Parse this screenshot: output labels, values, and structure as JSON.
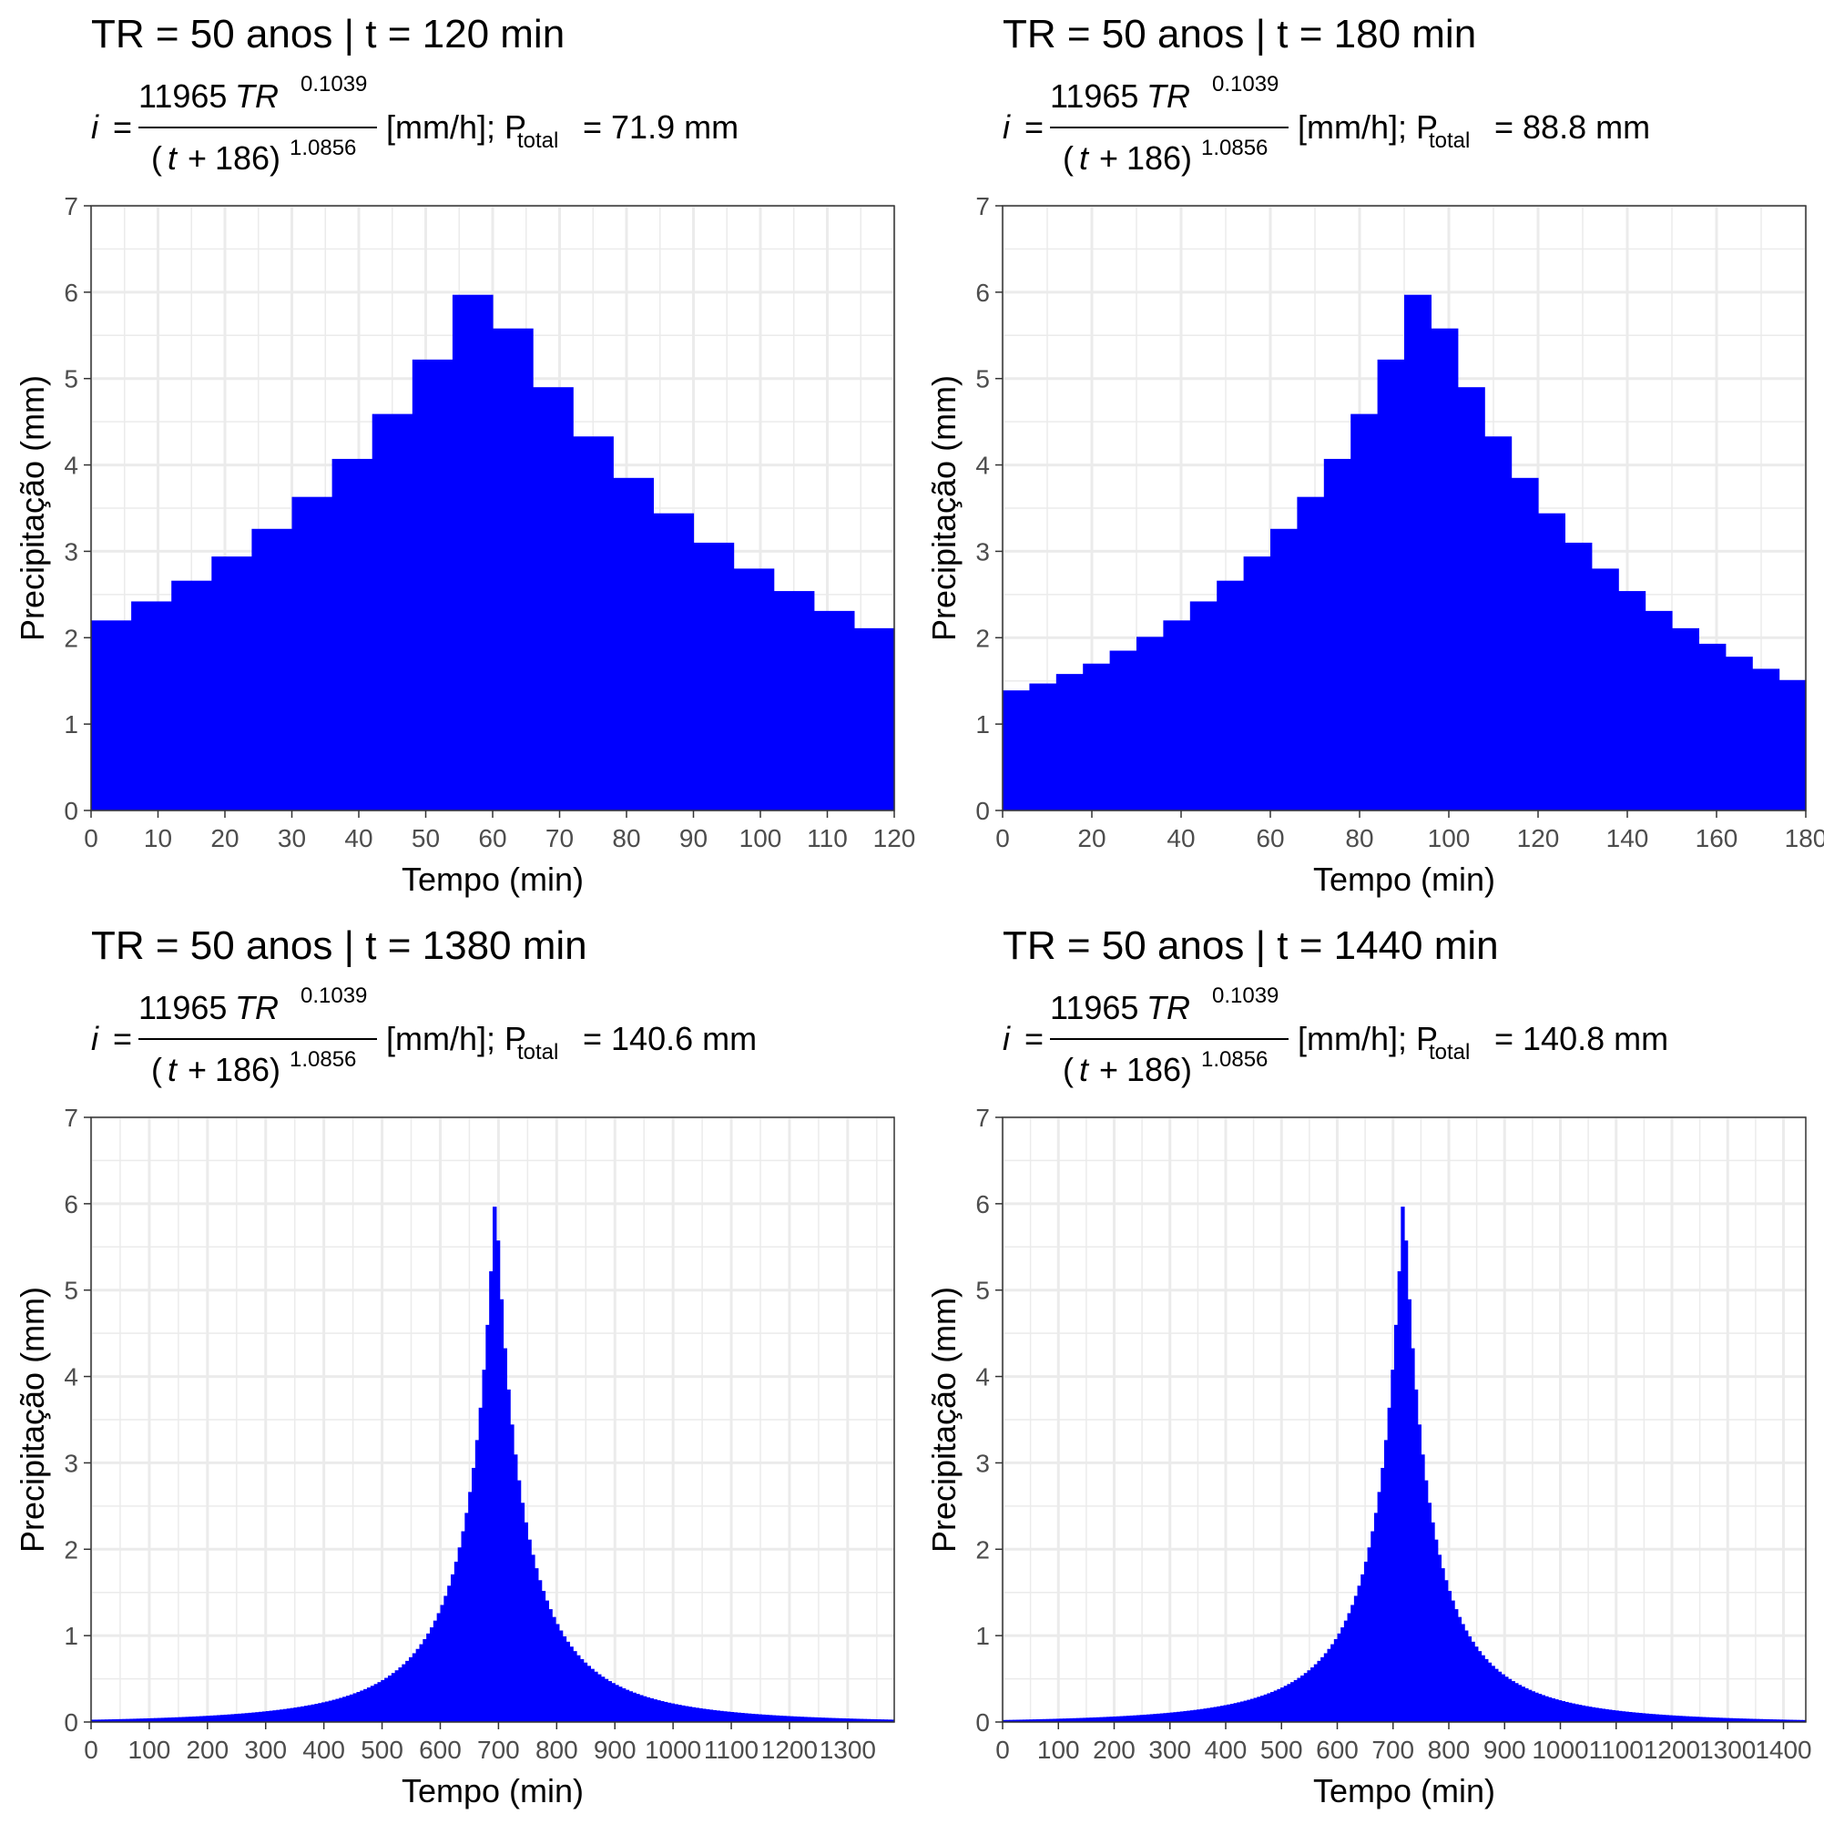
{
  "panels": [
    {
      "title": "TR = 50 anos | t = 120 min",
      "equation": {
        "lhs": "i",
        "numerator": "11965",
        "num_var": "TR",
        "num_exp": "0.1039",
        "denominator": "(t + 186)",
        "den_var": "t",
        "den_plus": "+",
        "den_const": "186",
        "den_exp": "1.0856",
        "unit": "[mm/h]; P",
        "p_sub": "total",
        "p_value": "= 71.9 mm"
      },
      "chart_data": {
        "type": "bar",
        "title": "TR = 50 anos | t = 120 min",
        "xlabel": "Tempo (min)",
        "ylabel": "Precipitação (mm)",
        "xlim": [
          0,
          120
        ],
        "ylim": [
          0,
          7
        ],
        "xticks": [
          "0",
          "10",
          "20",
          "30",
          "40",
          "50",
          "60",
          "70",
          "80",
          "90",
          "100",
          "110",
          "120"
        ],
        "yticks": [
          "0",
          "1",
          "2",
          "3",
          "4",
          "5",
          "6",
          "7"
        ],
        "step": 6,
        "peak_center": 57,
        "values": [
          2.2,
          2.42,
          2.66,
          2.94,
          3.26,
          3.63,
          4.07,
          4.59,
          5.22,
          5.97,
          5.58,
          4.9,
          4.33,
          3.85,
          3.44,
          3.1,
          2.8,
          2.54,
          2.31,
          2.11
        ],
        "color": "#0000ff",
        "grid": true
      }
    },
    {
      "title": "TR = 50 anos | t = 180 min",
      "equation": {
        "lhs": "i",
        "numerator": "11965",
        "num_var": "TR",
        "num_exp": "0.1039",
        "denominator": "(t + 186)",
        "den_var": "t",
        "den_plus": "+",
        "den_const": "186",
        "den_exp": "1.0856",
        "unit": "[mm/h]; P",
        "p_sub": "total",
        "p_value": "= 88.8 mm"
      },
      "chart_data": {
        "type": "bar",
        "title": "TR = 50 anos | t = 180 min",
        "xlabel": "Tempo (min)",
        "ylabel": "Precipitação (mm)",
        "xlim": [
          0,
          180
        ],
        "ylim": [
          0,
          7
        ],
        "xticks": [
          "0",
          "20",
          "40",
          "60",
          "80",
          "100",
          "120",
          "140",
          "160",
          "180"
        ],
        "yticks": [
          "0",
          "1",
          "2",
          "3",
          "4",
          "5",
          "6",
          "7"
        ],
        "step": 6,
        "peak_center": 93,
        "values": [
          1.39,
          1.47,
          1.58,
          1.7,
          1.85,
          2.01,
          2.2,
          2.42,
          2.66,
          2.94,
          3.26,
          3.63,
          4.07,
          4.59,
          5.22,
          5.97,
          5.58,
          4.9,
          4.33,
          3.85,
          3.44,
          3.1,
          2.8,
          2.54,
          2.31,
          2.11,
          1.93,
          1.78,
          1.64,
          1.51
        ],
        "color": "#0000ff",
        "grid": true
      }
    },
    {
      "title": "TR = 50 anos | t = 1380 min",
      "equation": {
        "lhs": "i",
        "numerator": "11965",
        "num_var": "TR",
        "num_exp": "0.1039",
        "denominator": "(t + 186)",
        "den_var": "t",
        "den_plus": "+",
        "den_const": "186",
        "den_exp": "1.0856",
        "unit": "[mm/h]; P",
        "p_sub": "total",
        "p_value": "= 140.6 mm"
      },
      "chart_data": {
        "type": "bar",
        "title": "TR = 50 anos | t = 1380 min",
        "xlabel": "Tempo (min)",
        "ylabel": "Precipitação (mm)",
        "xlim": [
          0,
          1380
        ],
        "ylim": [
          0,
          7
        ],
        "xticks": [
          "0",
          "100",
          "200",
          "300",
          "400",
          "500",
          "600",
          "700",
          "800",
          "900",
          "1000",
          "1100",
          "1200",
          "1300"
        ],
        "yticks": [
          "0",
          "1",
          "2",
          "3",
          "4",
          "5",
          "6",
          "7"
        ],
        "step": 6,
        "peak_center": 693,
        "idf": {
          "a": 11965,
          "tr": 50,
          "b": 0.1039,
          "c": 186,
          "d": 1.0856
        },
        "color": "#0000ff",
        "grid": true
      }
    },
    {
      "title": "TR = 50 anos | t = 1440 min",
      "equation": {
        "lhs": "i",
        "numerator": "11965",
        "num_var": "TR",
        "num_exp": "0.1039",
        "denominator": "(t + 186)",
        "den_var": "t",
        "den_plus": "+",
        "den_const": "186",
        "den_exp": "1.0856",
        "unit": "[mm/h]; P",
        "p_sub": "total",
        "p_value": "= 140.8 mm"
      },
      "chart_data": {
        "type": "bar",
        "title": "TR = 50 anos | t = 1440 min",
        "xlabel": "Tempo (min)",
        "ylabel": "Precipitação (mm)",
        "xlim": [
          0,
          1440
        ],
        "ylim": [
          0,
          7
        ],
        "xticks": [
          "0",
          "100",
          "200",
          "300",
          "400",
          "500",
          "600",
          "700",
          "800",
          "900",
          "1000",
          "1100",
          "1200",
          "1300",
          "1400"
        ],
        "yticks": [
          "0",
          "1",
          "2",
          "3",
          "4",
          "5",
          "6",
          "7"
        ],
        "step": 6,
        "peak_center": 717,
        "idf": {
          "a": 11965,
          "tr": 50,
          "b": 0.1039,
          "c": 186,
          "d": 1.0856
        },
        "color": "#0000ff",
        "grid": true
      }
    }
  ]
}
